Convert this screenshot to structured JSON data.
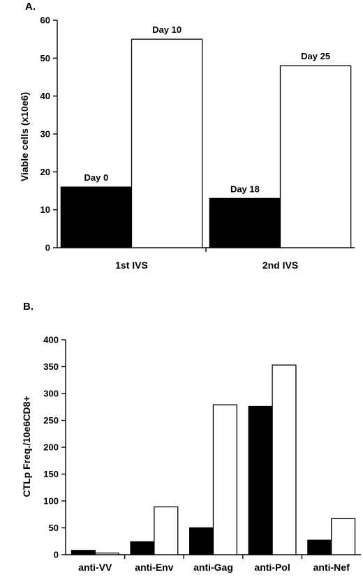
{
  "panels": [
    {
      "label": "A.",
      "chart_data": {
        "type": "bar",
        "ylabel": "Viable cells (x10e6)",
        "ylim": [
          0,
          60
        ],
        "yticks": [
          0,
          10,
          20,
          30,
          40,
          50,
          60
        ],
        "categories": [
          "1st IVS",
          "2nd IVS"
        ],
        "series": [
          {
            "color": "#000000",
            "values": [
              16,
              13
            ],
            "labels": [
              "Day 0",
              "Day 18"
            ]
          },
          {
            "color": "#ffffff",
            "values": [
              55,
              48
            ],
            "labels": [
              "Day 10",
              "Day 25"
            ]
          }
        ],
        "grid": false,
        "legend": "none"
      }
    },
    {
      "label": "B.",
      "chart_data": {
        "type": "bar",
        "ylabel": "CTLp Freq./10e6CD8+",
        "ylim": [
          0,
          400
        ],
        "yticks": [
          0,
          50,
          100,
          150,
          200,
          250,
          300,
          350,
          400
        ],
        "categories": [
          "anti-VV",
          "anti-Env",
          "anti-Gag",
          "anti-Pol",
          "anti-Nef"
        ],
        "series": [
          {
            "color": "#000000",
            "values": [
              8,
              24,
              50,
              276,
              27
            ]
          },
          {
            "color": "#ffffff",
            "values": [
              3,
              89,
              279,
              353,
              67
            ]
          }
        ],
        "grid": false,
        "legend": "none"
      }
    }
  ]
}
